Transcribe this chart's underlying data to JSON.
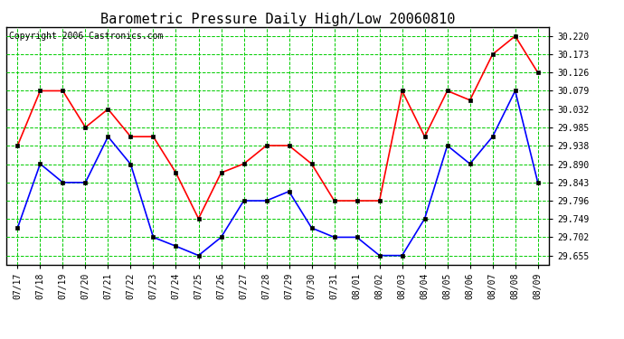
{
  "title": "Barometric Pressure Daily High/Low 20060810",
  "copyright": "Copyright 2006 Castronics.com",
  "x_labels": [
    "07/17",
    "07/18",
    "07/19",
    "07/20",
    "07/21",
    "07/22",
    "07/23",
    "07/24",
    "07/25",
    "07/26",
    "07/27",
    "07/28",
    "07/29",
    "07/30",
    "07/31",
    "08/01",
    "08/02",
    "08/03",
    "08/04",
    "08/05",
    "08/06",
    "08/07",
    "08/08",
    "08/09"
  ],
  "high_values": [
    29.938,
    30.079,
    30.079,
    29.985,
    30.032,
    29.961,
    29.961,
    29.868,
    29.75,
    29.868,
    29.891,
    29.938,
    29.938,
    29.891,
    29.796,
    29.796,
    29.796,
    30.079,
    29.961,
    30.079,
    30.055,
    30.173,
    30.22,
    30.126
  ],
  "low_values": [
    29.726,
    29.891,
    29.843,
    29.843,
    29.961,
    29.89,
    29.702,
    29.679,
    29.655,
    29.702,
    29.796,
    29.796,
    29.82,
    29.726,
    29.702,
    29.702,
    29.655,
    29.655,
    29.75,
    29.938,
    29.891,
    29.961,
    30.079,
    29.843
  ],
  "ylim_min": 29.632,
  "ylim_max": 30.243,
  "ytick_values": [
    29.655,
    29.702,
    29.749,
    29.796,
    29.843,
    29.89,
    29.938,
    29.985,
    30.032,
    30.079,
    30.126,
    30.173,
    30.22
  ],
  "ytick_labels": [
    "29.655",
    "29.702",
    "29.749",
    "29.796",
    "29.843",
    "29.890",
    "29.938",
    "29.985",
    "30.032",
    "30.079",
    "30.126",
    "30.173",
    "30.220"
  ],
  "bg_color": "#ffffff",
  "plot_bg_color": "#ffffff",
  "grid_color": "#00cc00",
  "high_color": "#ff0000",
  "low_color": "#0000ff",
  "title_fontsize": 11,
  "copyright_fontsize": 7,
  "tick_fontsize": 7,
  "ytick_fontsize": 7
}
